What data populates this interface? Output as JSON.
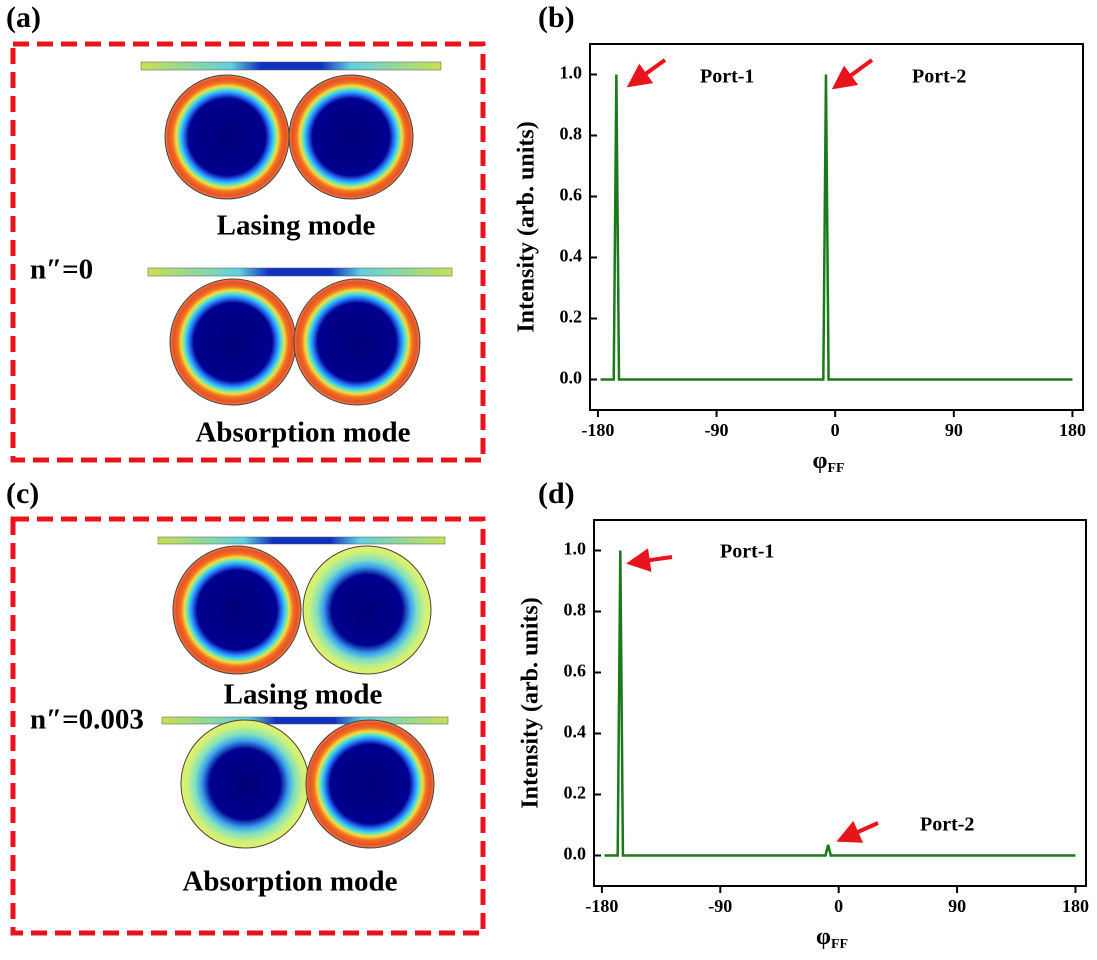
{
  "panels": [
    {
      "label": "(a)",
      "n_text": "n″=0",
      "modes": [
        "Lasing mode",
        "Absorption mode"
      ]
    },
    {
      "label": "(c)",
      "n_text": "n″=0.003",
      "modes": [
        "Lasing mode",
        "Absorption mode"
      ]
    }
  ],
  "chart_data": [
    {
      "type": "line",
      "panel_label": "(b)",
      "ylabel": "Intensity (arb. units)",
      "xlabel": "φ",
      "xlabel_subscript": "FF",
      "x": [
        -178,
        -168,
        -166,
        -164,
        -9,
        -7,
        -5,
        180
      ],
      "values": [
        0,
        0,
        1.0,
        0,
        0,
        1.0,
        0,
        0
      ],
      "color": "#1a7a1a",
      "xlim": [
        -186,
        188
      ],
      "ylim": [
        -0.1,
        1.1
      ],
      "xticks": [
        -180,
        -90,
        0,
        90,
        180
      ],
      "yticks": [
        {
          "value": 0,
          "label": "0.0"
        },
        0.2,
        0.4,
        0.6,
        0.8,
        {
          "value": 1,
          "label": "1.0"
        }
      ],
      "annotations": [
        "Port-1",
        "Port-2"
      ]
    },
    {
      "type": "line",
      "panel_label": "(d)",
      "ylabel": "Intensity (arb. units)",
      "xlabel": "φ",
      "xlabel_subscript": "FF",
      "x": [
        -178,
        -168,
        -166,
        -164,
        -10,
        -8,
        -6,
        180
      ],
      "values": [
        0,
        0,
        1.0,
        0,
        0,
        0.035,
        0,
        0
      ],
      "color": "#1a7a1a",
      "xlim": [
        -186,
        188
      ],
      "ylim": [
        -0.1,
        1.1
      ],
      "xticks": [
        -180,
        -90,
        0,
        90,
        180
      ],
      "yticks": [
        {
          "value": 0,
          "label": "0.0"
        },
        0.2,
        0.4,
        0.6,
        0.8,
        {
          "value": 1,
          "label": "1.0"
        }
      ],
      "annotations": [
        "Port-1",
        "Port-2"
      ]
    }
  ]
}
